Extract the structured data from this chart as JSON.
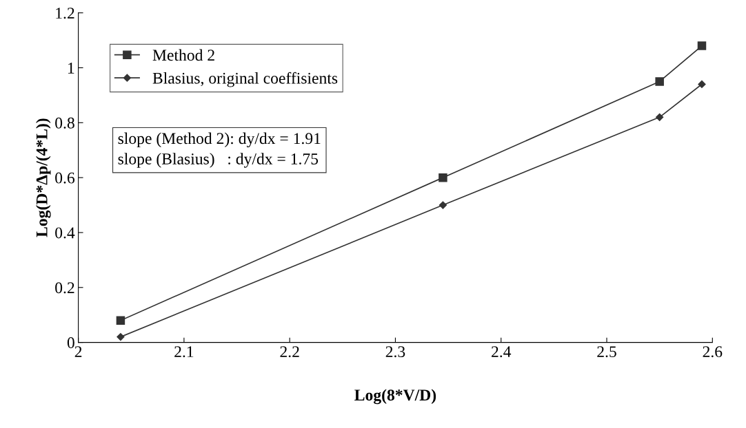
{
  "chart_data": {
    "type": "line",
    "xlabel": "Log(8*V/D)",
    "ylabel": "Log(D*Δp/(4*L))",
    "xlim": [
      2,
      2.6
    ],
    "xticks": [
      2,
      2.1,
      2.2,
      2.3,
      2.4,
      2.5,
      2.6
    ],
    "ylim": [
      0,
      1.2
    ],
    "yticks": [
      0,
      0.2,
      0.4,
      0.6,
      0.8,
      1,
      1.2
    ],
    "grid": false,
    "legend": "top left",
    "annotations": [
      "slope (Method 2): dy/dx = 1.91",
      "slope (Blasius)   : dy/dx = 1.75"
    ],
    "series": [
      {
        "name": "Method 2",
        "color": "#333333",
        "marker": "square",
        "x": [
          2.04,
          2.345,
          2.55,
          2.59
        ],
        "values": [
          0.08,
          0.6,
          0.95,
          1.08
        ]
      },
      {
        "name": "Blasius, original coeffisients",
        "color": "#333333",
        "marker": "diamond",
        "x": [
          2.04,
          2.345,
          2.55,
          2.59
        ],
        "values": [
          0.02,
          0.5,
          0.82,
          0.94
        ]
      }
    ]
  }
}
